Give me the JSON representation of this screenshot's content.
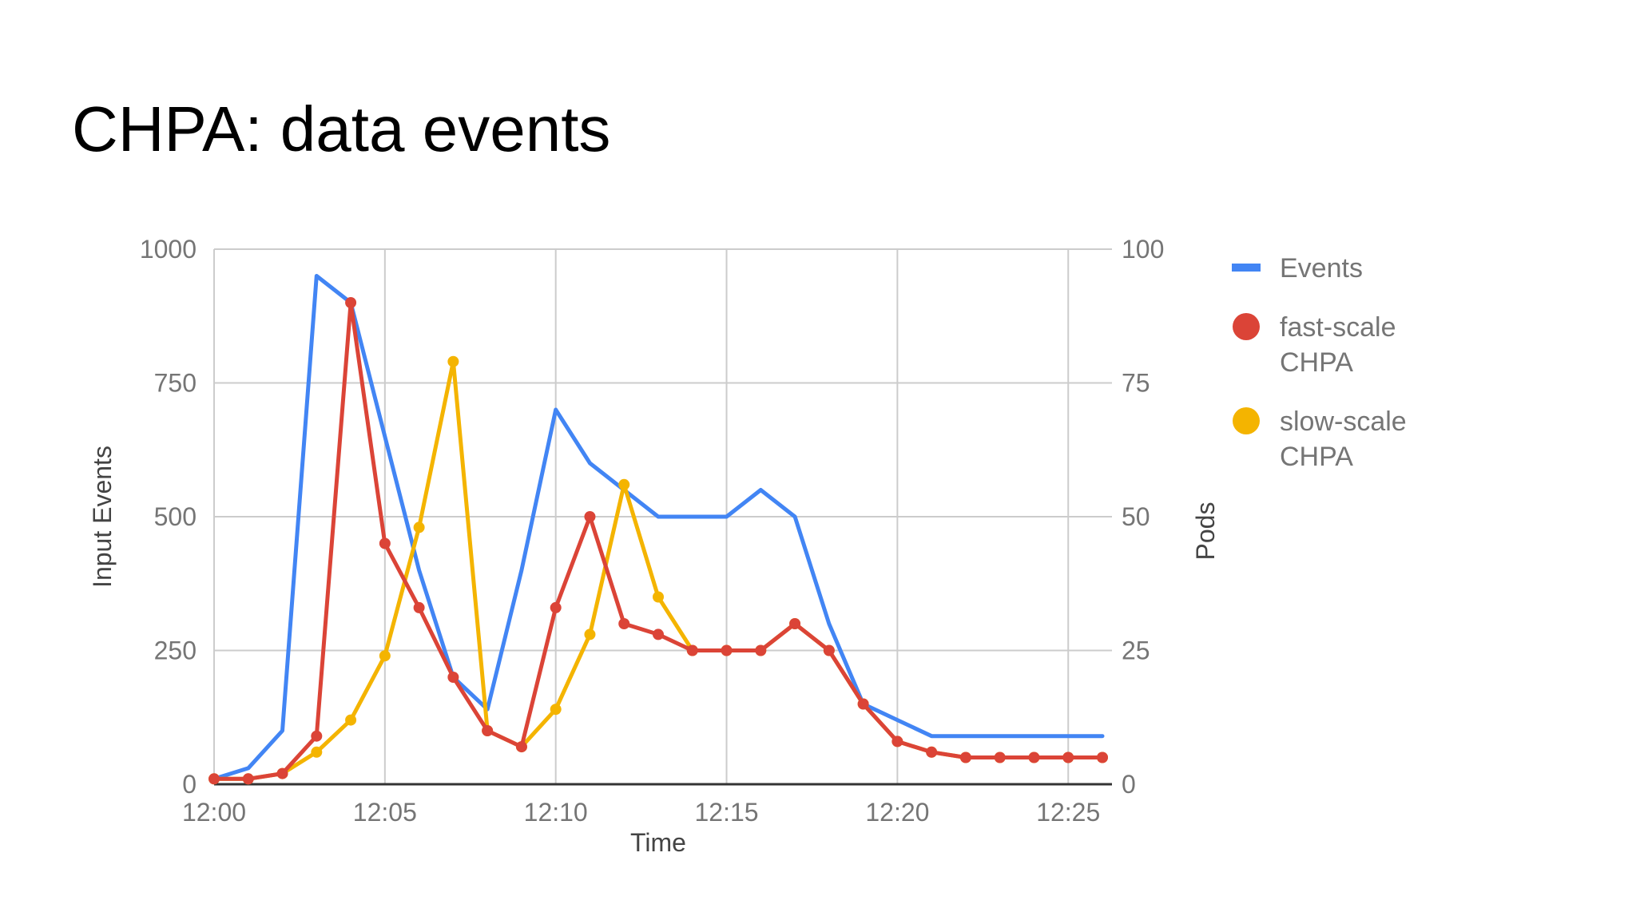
{
  "slide": {
    "title": "CHPA: data events"
  },
  "chart_data": {
    "type": "line",
    "x": [
      "12:00",
      "12:01",
      "12:02",
      "12:03",
      "12:04",
      "12:05",
      "12:06",
      "12:07",
      "12:08",
      "12:09",
      "12:10",
      "12:11",
      "12:12",
      "12:13",
      "12:14",
      "12:15",
      "12:16",
      "12:17",
      "12:18",
      "12:19",
      "12:20",
      "12:21",
      "12:22",
      "12:23",
      "12:24",
      "12:25",
      "12:26"
    ],
    "x_tick_labels": [
      "12:00",
      "12:05",
      "12:10",
      "12:15",
      "12:20",
      "12:25"
    ],
    "xlabel": "Time",
    "ylabel_left": "Input Events",
    "ylabel_right": "Pods",
    "ylim_left": [
      0,
      1000
    ],
    "ylim_right": [
      0,
      100
    ],
    "y_ticks_left": [
      "0",
      "250",
      "500",
      "750",
      "1000"
    ],
    "y_ticks_right": [
      "0",
      "25",
      "50",
      "75",
      "100"
    ],
    "grid": true,
    "legend_position": "right",
    "series": [
      {
        "name": "Events",
        "axis": "left",
        "color": "#4285F4",
        "markers": false,
        "values": [
          10,
          30,
          100,
          950,
          900,
          650,
          400,
          200,
          140,
          400,
          700,
          600,
          550,
          500,
          500,
          500,
          550,
          500,
          300,
          150,
          120,
          90,
          90,
          90,
          90,
          90,
          90
        ]
      },
      {
        "name": "fast-scale CHPA",
        "axis": "right",
        "color": "#DB4437",
        "markers": true,
        "values": [
          1,
          1,
          2,
          9,
          90,
          45,
          33,
          20,
          10,
          7,
          33,
          50,
          30,
          28,
          25,
          25,
          25,
          30,
          25,
          15,
          8,
          6,
          5,
          5,
          5,
          5,
          5
        ]
      },
      {
        "name": "slow-scale CHPA",
        "axis": "right",
        "color": "#F4B400",
        "markers": true,
        "values": [
          1,
          1,
          2,
          6,
          12,
          24,
          48,
          79,
          10,
          7,
          14,
          28,
          56,
          35,
          25,
          25,
          25,
          30,
          25,
          15,
          8,
          6,
          5,
          5,
          5,
          5,
          5
        ]
      }
    ],
    "legend": [
      {
        "lines": [
          "Events"
        ],
        "color": "#4285F4",
        "symbol": "line"
      },
      {
        "lines": [
          "fast-scale",
          "CHPA"
        ],
        "color": "#DB4437",
        "symbol": "circle"
      },
      {
        "lines": [
          "slow-scale",
          "CHPA"
        ],
        "color": "#F4B400",
        "symbol": "circle"
      }
    ]
  }
}
